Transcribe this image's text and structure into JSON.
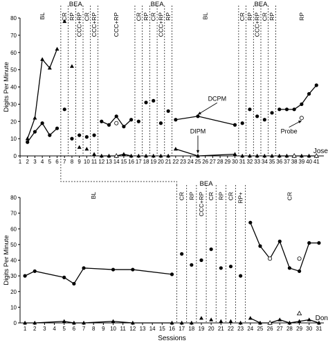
{
  "chart_data": [
    {
      "type": "line",
      "participant": "Jose",
      "ylabel": "Digits Per Minute",
      "xlim": [
        1,
        42
      ],
      "ylim": [
        0,
        80
      ],
      "y_ticks": [
        0,
        10,
        20,
        30,
        40,
        50,
        60,
        70,
        80
      ],
      "x_ticks": [
        1,
        2,
        3,
        4,
        5,
        6,
        7,
        8,
        9,
        10,
        11,
        12,
        13,
        14,
        15,
        16,
        17,
        18,
        19,
        20,
        21,
        22,
        23,
        24,
        25,
        26,
        27,
        28,
        29,
        30,
        31,
        32,
        33,
        34,
        35,
        36,
        37,
        38,
        39,
        40,
        41
      ],
      "phase_labels": [
        {
          "text": "BL",
          "x": 4,
          "rotated": true
        },
        {
          "text": "BEA",
          "x": 8.5,
          "rotated": false
        },
        {
          "text": "CR",
          "x": 7,
          "rotated": true
        },
        {
          "text": "RP",
          "x": 8,
          "rotated": true
        },
        {
          "text": "CCC+RP",
          "x": 9,
          "rotated": true
        },
        {
          "text": "CR",
          "x": 10,
          "rotated": true
        },
        {
          "text": "CCC+RP",
          "x": 11,
          "rotated": true
        },
        {
          "text": "CCC+RP",
          "x": 14,
          "rotated": true
        },
        {
          "text": "BEA",
          "x": 19.5,
          "rotated": false
        },
        {
          "text": "CR",
          "x": 17,
          "rotated": true
        },
        {
          "text": "RP",
          "x": 18,
          "rotated": true
        },
        {
          "text": "CR",
          "x": 19,
          "rotated": true
        },
        {
          "text": "CCC+RP",
          "x": 20,
          "rotated": true
        },
        {
          "text": "RP",
          "x": 21,
          "rotated": true
        },
        {
          "text": "BL",
          "x": 26,
          "rotated": true
        },
        {
          "text": "BEA",
          "x": 33.5,
          "rotated": false
        },
        {
          "text": "CR",
          "x": 31,
          "rotated": true
        },
        {
          "text": "RP",
          "x": 32,
          "rotated": true
        },
        {
          "text": "CCC+RP",
          "x": 33,
          "rotated": true
        },
        {
          "text": "CR",
          "x": 34,
          "rotated": true
        },
        {
          "text": "RP",
          "x": 35,
          "rotated": true
        },
        {
          "text": "RP",
          "x": 39,
          "rotated": true
        }
      ],
      "phase_lines": [
        6.5,
        7.5,
        8.5,
        9.5,
        10.5,
        11.5,
        16.5,
        17.5,
        18.5,
        19.5,
        20.5,
        21.5,
        30.5,
        31.5,
        32.5,
        33.5,
        34.5,
        35.5
      ],
      "series": [
        {
          "name": "DCPM",
          "marker": "circle",
          "segments": [
            [
              [
                2,
                8
              ],
              [
                3,
                14
              ],
              [
                4,
                19
              ],
              [
                5,
                12
              ],
              [
                6,
                16
              ]
            ],
            [
              [
                12,
                20
              ],
              [
                13,
                18
              ],
              [
                14,
                23
              ],
              [
                15,
                17
              ],
              [
                16,
                21
              ]
            ],
            [
              [
                22,
                21
              ],
              [
                25,
                23
              ],
              [
                30,
                18
              ]
            ],
            [
              [
                36,
                27
              ],
              [
                37,
                27
              ],
              [
                38,
                27
              ],
              [
                39,
                30
              ],
              [
                40,
                36
              ],
              [
                41,
                41
              ]
            ]
          ],
          "isolated": [
            [
              7,
              27
            ],
            [
              8,
              10
            ],
            [
              9,
              12
            ],
            [
              10,
              11
            ],
            [
              11,
              12
            ],
            [
              17,
              20
            ],
            [
              18,
              31
            ],
            [
              19,
              32
            ],
            [
              20,
              19
            ],
            [
              21,
              26
            ],
            [
              31,
              19
            ],
            [
              32,
              27
            ],
            [
              33,
              23
            ],
            [
              34,
              21
            ],
            [
              35,
              25
            ]
          ]
        },
        {
          "name": "DIPM",
          "marker": "triangle",
          "segments": [
            [
              [
                2,
                10
              ],
              [
                3,
                22
              ],
              [
                4,
                56
              ],
              [
                5,
                51
              ],
              [
                6,
                62
              ]
            ],
            [
              [
                12,
                0
              ],
              [
                13,
                0
              ],
              [
                14,
                0
              ],
              [
                15,
                1
              ],
              [
                16,
                0
              ]
            ],
            [
              [
                22,
                4
              ],
              [
                25,
                0
              ],
              [
                30,
                1
              ]
            ],
            [
              [
                36,
                0
              ],
              [
                37,
                0
              ],
              [
                38,
                0
              ],
              [
                39,
                0
              ],
              [
                40,
                0
              ],
              [
                41,
                0
              ]
            ]
          ],
          "isolated": [
            [
              7,
              78
            ],
            [
              8,
              52
            ],
            [
              9,
              5
            ],
            [
              10,
              4
            ],
            [
              11,
              1
            ],
            [
              17,
              0
            ],
            [
              18,
              0
            ],
            [
              19,
              0
            ],
            [
              20,
              0
            ],
            [
              21,
              0
            ],
            [
              31,
              0
            ],
            [
              32,
              0
            ],
            [
              33,
              0
            ],
            [
              34,
              0
            ],
            [
              35,
              0
            ]
          ]
        },
        {
          "name": "Probe",
          "marker": "open-circle",
          "points": [
            [
              14,
              19
            ],
            [
              39,
              22
            ]
          ]
        },
        {
          "name": "Probe (DIPM)",
          "marker": "open-triangle",
          "points": [
            [
              14,
              0
            ],
            [
              38,
              0
            ],
            [
              41,
              0
            ]
          ]
        }
      ],
      "annotations": [
        {
          "text": "DCPM",
          "tx": 27.6,
          "ty": 32,
          "ax": 25,
          "ay": 24
        },
        {
          "text": "DIPM",
          "tx": 25,
          "ty": 13,
          "ax": 25,
          "ay": 1.5
        },
        {
          "text": "Probe",
          "tx": 37.3,
          "ty": 13,
          "ax": 39,
          "ay": 20.5
        }
      ]
    },
    {
      "type": "line",
      "participant": "Don",
      "ylabel": "Digits Per Minute",
      "xlabel": "Sessions",
      "xlim": [
        1,
        31.5
      ],
      "ylim": [
        0,
        80
      ],
      "y_ticks": [
        0,
        10,
        20,
        30,
        40,
        50,
        60,
        70,
        80
      ],
      "x_ticks": [
        1,
        2,
        3,
        4,
        5,
        6,
        7,
        8,
        9,
        10,
        11,
        12,
        13,
        14,
        15,
        16,
        17,
        18,
        19,
        20,
        21,
        22,
        23,
        24,
        25,
        26,
        27,
        28,
        29,
        30,
        31
      ],
      "phase_labels": [
        {
          "text": "BL",
          "x": 8,
          "rotated": true
        },
        {
          "text": "BEA",
          "x": 19.5,
          "rotated": false
        },
        {
          "text": "CR",
          "x": 17,
          "rotated": true
        },
        {
          "text": "RP",
          "x": 18,
          "rotated": true
        },
        {
          "text": "CCC+RP",
          "x": 19,
          "rotated": true
        },
        {
          "text": "CR",
          "x": 20,
          "rotated": true
        },
        {
          "text": "RP",
          "x": 21,
          "rotated": true
        },
        {
          "text": "CR",
          "x": 22,
          "rotated": true
        },
        {
          "text": "RP+",
          "x": 23,
          "rotated": true
        },
        {
          "text": "CR",
          "x": 28,
          "rotated": true
        }
      ],
      "phase_lines": [
        16.5,
        17.5,
        18.5,
        19.5,
        20.5,
        21.5,
        22.5,
        23.5
      ],
      "series": [
        {
          "name": "DCPM",
          "marker": "circle",
          "segments": [
            [
              [
                1,
                30
              ],
              [
                2,
                33
              ],
              [
                5,
                29
              ],
              [
                6,
                25
              ],
              [
                7,
                35
              ],
              [
                10,
                34
              ],
              [
                12,
                34
              ],
              [
                16,
                31
              ]
            ],
            [
              [
                24,
                64
              ],
              [
                25,
                49
              ],
              [
                26,
                41
              ],
              [
                27,
                52
              ],
              [
                28,
                35
              ],
              [
                29,
                33
              ],
              [
                30,
                51
              ],
              [
                31,
                51
              ]
            ]
          ],
          "isolated": [
            [
              17,
              44
            ],
            [
              18,
              37
            ],
            [
              19,
              40
            ],
            [
              20,
              47
            ],
            [
              21,
              35
            ],
            [
              22,
              36
            ],
            [
              23,
              30
            ]
          ]
        },
        {
          "name": "DIPM",
          "marker": "triangle",
          "segments": [
            [
              [
                1,
                0
              ],
              [
                2,
                0
              ],
              [
                5,
                1
              ],
              [
                6,
                0
              ],
              [
                7,
                0
              ],
              [
                10,
                1
              ],
              [
                12,
                0
              ],
              [
                16,
                0
              ]
            ],
            [
              [
                24,
                3
              ],
              [
                25,
                0
              ],
              [
                26,
                0
              ],
              [
                27,
                2
              ],
              [
                28,
                0
              ],
              [
                29,
                1
              ],
              [
                30,
                2
              ],
              [
                31,
                0
              ]
            ]
          ],
          "isolated": [
            [
              17,
              0
            ],
            [
              18,
              0
            ],
            [
              19,
              3
            ],
            [
              20,
              2
            ],
            [
              21,
              1
            ],
            [
              22,
              1
            ],
            [
              23,
              0
            ]
          ]
        },
        {
          "name": "Probe",
          "marker": "open-circle",
          "points": [
            [
              26,
              41
            ],
            [
              29,
              41
            ]
          ]
        },
        {
          "name": "Probe (DIPM)",
          "marker": "open-triangle",
          "points": [
            [
              26,
              0
            ],
            [
              29,
              6
            ]
          ]
        }
      ],
      "annotations": []
    }
  ]
}
